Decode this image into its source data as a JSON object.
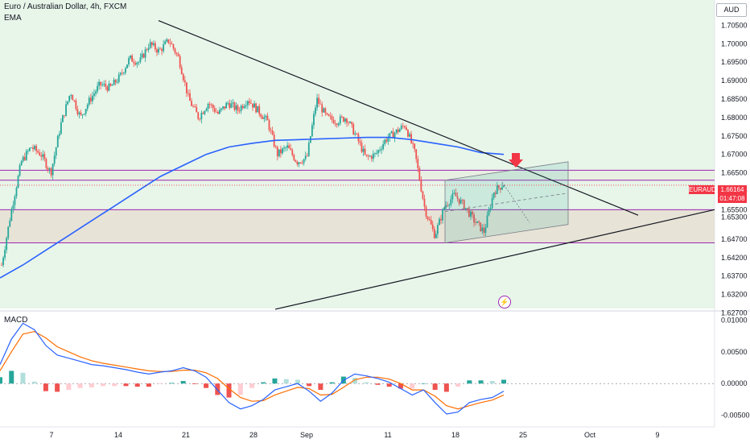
{
  "header": {
    "title": "Euro / Australian Dollar, 4h, FXCM",
    "indicator": "EMA",
    "macd_label": "MACD",
    "currency": "AUD"
  },
  "badges": {
    "symbol": "EURAUD",
    "price": "1.66164",
    "countdown": "01:47:08"
  },
  "lightning_icon": "⚡",
  "colors": {
    "up": "#26a69a",
    "down": "#ef5350",
    "ema": "#2962ff",
    "zone_line": "#9c27b0",
    "macd_line": "#2962ff",
    "signal_line": "#ff6d00",
    "price_tag": "#f23645",
    "background_tint": "#e8f5e9",
    "zone_fill": "#e6dfd2"
  },
  "chart_data": [
    {
      "type": "candlestick",
      "title": "Euro / Australian Dollar, 4h, FXCM",
      "y_ticks": [
        "1.71000",
        "1.70500",
        "1.70000",
        "1.69500",
        "1.69000",
        "1.68500",
        "1.68000",
        "1.67500",
        "1.67000",
        "1.66500",
        "1.66000",
        "1.65500",
        "1.65300",
        "1.64700",
        "1.64200",
        "1.63700",
        "1.63200",
        "1.62700"
      ],
      "y_tick_values": [
        1.71,
        1.705,
        1.7,
        1.695,
        1.69,
        1.685,
        1.68,
        1.675,
        1.67,
        1.665,
        1.66,
        1.655,
        1.653,
        1.647,
        1.642,
        1.637,
        1.632,
        1.627
      ],
      "x_ticks": [
        "7",
        "14",
        "21",
        "28",
        "Sep",
        "11",
        "18",
        "25",
        "Oct",
        "9"
      ],
      "ylim": [
        1.6282,
        1.711
      ],
      "current_price": 1.66164,
      "close_path": [
        1.64,
        1.655,
        1.668,
        1.672,
        1.67,
        1.665,
        1.678,
        1.687,
        1.68,
        1.685,
        1.689,
        1.688,
        1.691,
        1.696,
        1.695,
        1.7,
        1.698,
        1.701,
        1.696,
        1.685,
        1.68,
        1.684,
        1.681,
        1.684,
        1.682,
        1.685,
        1.682,
        1.679,
        1.67,
        1.672,
        1.668,
        1.669,
        1.685,
        1.68,
        1.679,
        1.68,
        1.675,
        1.669,
        1.67,
        1.674,
        1.676,
        1.678,
        1.67,
        1.655,
        1.648,
        1.656,
        1.659,
        1.656,
        1.652,
        1.649,
        1.66,
        1.662
      ],
      "ema": [
        1.6365,
        1.64,
        1.644,
        1.648,
        1.652,
        1.656,
        1.66,
        1.664,
        1.667,
        1.67,
        1.672,
        1.673,
        1.6738,
        1.674,
        1.6742,
        1.6744,
        1.6746,
        1.6746,
        1.674,
        1.673,
        1.672,
        1.6705,
        1.67
      ],
      "ema_name": "EMA",
      "zones": [
        {
          "from": 1.663,
          "to": 1.6657
        },
        {
          "from": 1.646,
          "to": 1.655
        }
      ],
      "trend_down": [
        [
          1.7063,
          1.6535
        ]
      ],
      "trend_up": [
        [
          1.628,
          1.655
        ]
      ],
      "channel": {
        "upper": [
          1.663,
          1.668
        ],
        "lower": [
          1.646,
          1.651
        ]
      },
      "signal_arrow": "down"
    },
    {
      "type": "macd",
      "title": "MACD",
      "y_ticks": [
        "0.01000",
        "0.00500",
        "0.00000",
        "-0.00500"
      ],
      "y_tick_values": [
        0.01,
        0.005,
        0.0,
        -0.005
      ],
      "ylim": [
        -0.0062,
        0.0112
      ],
      "macd": [
        0.003,
        0.007,
        0.0095,
        0.0085,
        0.006,
        0.0045,
        0.004,
        0.0035,
        0.003,
        0.0028,
        0.0025,
        0.0022,
        0.0018,
        0.0015,
        0.0018,
        0.002,
        0.0025,
        0.002,
        0.001,
        -0.001,
        -0.003,
        -0.004,
        -0.0035,
        -0.0025,
        -0.001,
        -0.0005,
        0.0,
        -0.0012,
        -0.0028,
        -0.0015,
        0.0005,
        0.0015,
        0.0012,
        0.0008,
        0.0002,
        -0.0008,
        -0.0018,
        -0.001,
        -0.003,
        -0.0048,
        -0.0045,
        -0.003,
        -0.0025,
        -0.0022,
        -0.0012
      ],
      "signal": [
        0.002,
        0.005,
        0.0078,
        0.0082,
        0.0072,
        0.0058,
        0.005,
        0.0042,
        0.0036,
        0.0032,
        0.0029,
        0.0026,
        0.0023,
        0.002,
        0.0019,
        0.0019,
        0.0021,
        0.0021,
        0.0017,
        0.0008,
        -0.0008,
        -0.0022,
        -0.0028,
        -0.0027,
        -0.0018,
        -0.0012,
        -0.0006,
        -0.0008,
        -0.0018,
        -0.0017,
        -0.0006,
        0.0006,
        0.001,
        0.001,
        0.0007,
        0.0,
        -0.001,
        -0.001,
        -0.002,
        -0.0035,
        -0.004,
        -0.0035,
        -0.003,
        -0.0026,
        -0.0018
      ]
    }
  ]
}
